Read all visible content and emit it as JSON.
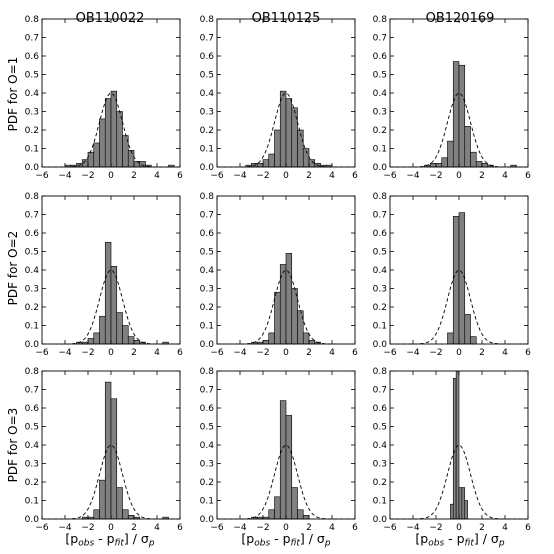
{
  "chart_data": {
    "type": "bar",
    "layout": "3x3 grid of histograms",
    "column_titles": [
      "OB110022",
      "OB110125",
      "OB120169"
    ],
    "row_labels": [
      "PDF for O=1",
      "PDF for O=2",
      "PDF for O=3"
    ],
    "xlabel": {
      "main": "[p",
      "sub1": "obs",
      "mid": " - p",
      "sub2": "fit",
      "end": "] / σ",
      "sub3": "p"
    },
    "xlim": [
      -6,
      6
    ],
    "ylim": [
      0,
      0.8
    ],
    "xticks": [
      "−6",
      "−4",
      "−2",
      "0",
      "2",
      "4",
      "6"
    ],
    "yticks": [
      "0.0",
      "0.1",
      "0.2",
      "0.3",
      "0.4",
      "0.5",
      "0.6",
      "0.7",
      "0.8"
    ],
    "overlay": "dashed standard normal curve",
    "colors": {
      "bar_fill": "#808080",
      "edge": "#000000"
    },
    "panels": [
      {
        "row": 0,
        "col": 0,
        "bin_width": 0.5,
        "bins": [
          [
            -4,
            0.01
          ],
          [
            -3.5,
            0.01
          ],
          [
            -3,
            0.02
          ],
          [
            -2.5,
            0.04
          ],
          [
            -2,
            0.08
          ],
          [
            -1.5,
            0.13
          ],
          [
            -1,
            0.26
          ],
          [
            -0.5,
            0.37
          ],
          [
            0,
            0.41
          ],
          [
            0.5,
            0.3
          ],
          [
            1,
            0.17
          ],
          [
            1.5,
            0.09
          ],
          [
            2,
            0.03
          ],
          [
            2.5,
            0.03
          ],
          [
            3,
            0.01
          ],
          [
            5,
            0.01
          ]
        ]
      },
      {
        "row": 0,
        "col": 1,
        "bin_width": 0.5,
        "bins": [
          [
            -3.5,
            0.01
          ],
          [
            -3,
            0.02
          ],
          [
            -2.5,
            0.02
          ],
          [
            -2,
            0.04
          ],
          [
            -1.5,
            0.07
          ],
          [
            -1,
            0.2
          ],
          [
            -0.5,
            0.41
          ],
          [
            0,
            0.37
          ],
          [
            0.5,
            0.32
          ],
          [
            1,
            0.2
          ],
          [
            1.5,
            0.1
          ],
          [
            2,
            0.04
          ],
          [
            2.5,
            0.02
          ],
          [
            3,
            0.01
          ],
          [
            3.5,
            0.01
          ]
        ]
      },
      {
        "row": 0,
        "col": 2,
        "bin_width": 0.5,
        "bins": [
          [
            -3,
            0.01
          ],
          [
            -2.5,
            0.02
          ],
          [
            -2,
            0.02
          ],
          [
            -1.5,
            0.05
          ],
          [
            -1,
            0.14
          ],
          [
            -0.5,
            0.57
          ],
          [
            0,
            0.55
          ],
          [
            0.5,
            0.22
          ],
          [
            1,
            0.08
          ],
          [
            1.5,
            0.03
          ],
          [
            2,
            0.02
          ],
          [
            2.5,
            0.01
          ],
          [
            4.5,
            0.01
          ]
        ]
      },
      {
        "row": 1,
        "col": 0,
        "bin_width": 0.5,
        "bins": [
          [
            -3,
            0.01
          ],
          [
            -2.5,
            0.01
          ],
          [
            -2,
            0.03
          ],
          [
            -1.5,
            0.06
          ],
          [
            -1,
            0.15
          ],
          [
            -0.5,
            0.55
          ],
          [
            0,
            0.42
          ],
          [
            0.5,
            0.17
          ],
          [
            1,
            0.1
          ],
          [
            1.5,
            0.04
          ],
          [
            2,
            0.02
          ],
          [
            2.5,
            0.01
          ],
          [
            4.5,
            0.01
          ]
        ]
      },
      {
        "row": 1,
        "col": 1,
        "bin_width": 0.5,
        "bins": [
          [
            -3,
            0.01
          ],
          [
            -2.5,
            0.01
          ],
          [
            -2,
            0.02
          ],
          [
            -1.5,
            0.06
          ],
          [
            -1,
            0.28
          ],
          [
            -0.5,
            0.43
          ],
          [
            0,
            0.49
          ],
          [
            0.5,
            0.3
          ],
          [
            1,
            0.18
          ],
          [
            1.5,
            0.06
          ],
          [
            2,
            0.02
          ],
          [
            2.5,
            0.01
          ]
        ]
      },
      {
        "row": 1,
        "col": 2,
        "bin_width": 0.5,
        "bins": [
          [
            -1,
            0.06
          ],
          [
            -0.5,
            0.69
          ],
          [
            0,
            0.71
          ],
          [
            0.5,
            0.16
          ],
          [
            1,
            0.04
          ]
        ]
      },
      {
        "row": 2,
        "col": 0,
        "bin_width": 0.5,
        "bins": [
          [
            -2.5,
            0.01
          ],
          [
            -2,
            0.01
          ],
          [
            -1.5,
            0.05
          ],
          [
            -1,
            0.21
          ],
          [
            -0.5,
            0.74
          ],
          [
            0,
            0.65
          ],
          [
            0.5,
            0.17
          ],
          [
            1,
            0.05
          ],
          [
            1.5,
            0.02
          ],
          [
            2,
            0.01
          ],
          [
            4.5,
            0.01
          ]
        ]
      },
      {
        "row": 2,
        "col": 1,
        "bin_width": 0.5,
        "bins": [
          [
            -3,
            0.01
          ],
          [
            -2.5,
            0.01
          ],
          [
            -2,
            0.01
          ],
          [
            -1.5,
            0.05
          ],
          [
            -1,
            0.12
          ],
          [
            -0.5,
            0.64
          ],
          [
            0,
            0.56
          ],
          [
            0.5,
            0.17
          ],
          [
            1,
            0.05
          ],
          [
            1.5,
            0.02
          ]
        ]
      },
      {
        "row": 2,
        "col": 2,
        "bin_width": 0.25,
        "bins": [
          [
            -0.75,
            0.08
          ],
          [
            -0.5,
            0.76
          ],
          [
            -0.25,
            0.8
          ],
          [
            0,
            0.17
          ],
          [
            0.25,
            0.17
          ],
          [
            0.5,
            0.1
          ]
        ]
      }
    ]
  }
}
